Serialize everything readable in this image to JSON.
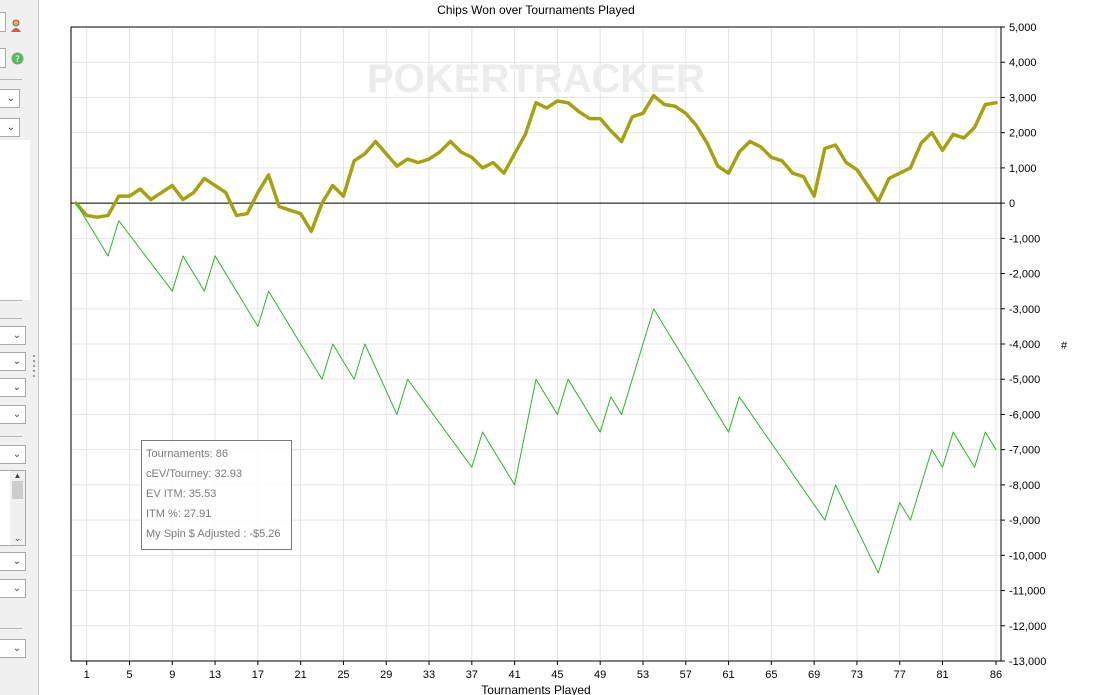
{
  "chart_data": {
    "type": "line",
    "title": "Chips Won over Tournaments Played",
    "xlabel": "Tournaments Played",
    "ylabel": "#",
    "xlim": [
      0,
      86
    ],
    "ylim": [
      -13000,
      5000
    ],
    "x_ticks": [
      "1",
      "5",
      "9",
      "13",
      "17",
      "21",
      "25",
      "29",
      "33",
      "37",
      "41",
      "45",
      "49",
      "53",
      "57",
      "61",
      "65",
      "69",
      "73",
      "77",
      "81",
      "86"
    ],
    "y_ticks": [
      "5,000",
      "4,000",
      "3,000",
      "2,000",
      "1,000",
      "0",
      "-1,000",
      "-2,000",
      "-3,000",
      "-4,000",
      "-5,000",
      "-6,000",
      "-7,000",
      "-8,000",
      "-9,000",
      "-10,000",
      "-11,000",
      "-12,000",
      "-13,000"
    ],
    "grid": true,
    "watermark": "POKERTRACKER",
    "series": [
      {
        "color": "#a3a311",
        "x": [
          0,
          1,
          2,
          3,
          4,
          5,
          6,
          7,
          8,
          9,
          10,
          11,
          12,
          13,
          14,
          15,
          16,
          17,
          18,
          19,
          20,
          21,
          22,
          23,
          24,
          25,
          26,
          27,
          28,
          29,
          30,
          31,
          32,
          33,
          34,
          35,
          36,
          37,
          38,
          39,
          40,
          41,
          42,
          43,
          44,
          45,
          46,
          47,
          48,
          49,
          50,
          51,
          52,
          53,
          54,
          55,
          56,
          57,
          58,
          59,
          60,
          61,
          62,
          63,
          64,
          65,
          66,
          67,
          68,
          69,
          70,
          71,
          72,
          73,
          74,
          75,
          76,
          77,
          78,
          79,
          80,
          81,
          82,
          83,
          84,
          85,
          86
        ],
        "values": [
          0,
          -350,
          -400,
          -350,
          200,
          200,
          400,
          100,
          300,
          500,
          100,
          300,
          700,
          500,
          300,
          -350,
          -300,
          300,
          800,
          -100,
          -200,
          -300,
          -800,
          0,
          500,
          200,
          1200,
          1400,
          1750,
          1400,
          1050,
          1250,
          1150,
          1250,
          1450,
          1750,
          1450,
          1300,
          1000,
          1150,
          850,
          1400,
          1950,
          2850,
          2700,
          2900,
          2850,
          2600,
          2400,
          2400,
          2050,
          1750,
          2450,
          2550,
          3050,
          2800,
          2750,
          2550,
          2200,
          1700,
          1050,
          850,
          1450,
          1750,
          1600,
          1300,
          1200,
          850,
          750,
          200,
          1550,
          1650,
          1150,
          950,
          500,
          50,
          700,
          850,
          1000,
          1700,
          2000,
          1500,
          1950,
          1850,
          2150,
          2800,
          2850
        ]
      },
      {
        "color": "#2db52d",
        "x": [
          0,
          3,
          4,
          9,
          10,
          12,
          13,
          17,
          18,
          23,
          24,
          26,
          27,
          30,
          31,
          37,
          38,
          41,
          43,
          45,
          46,
          49,
          50,
          51,
          52,
          54,
          61,
          62,
          70,
          71,
          75,
          77,
          78,
          80,
          81,
          82,
          84,
          85,
          86
        ],
        "values": [
          0,
          -1500,
          -500,
          -2500,
          -1500,
          -2500,
          -1500,
          -3500,
          -2500,
          -5000,
          -4000,
          -5000,
          -4000,
          -6000,
          -5000,
          -7500,
          -6500,
          -8000,
          -5000,
          -6000,
          -5000,
          -6500,
          -5500,
          -6000,
          -5000,
          -3000,
          -6500,
          -5500,
          -9000,
          -8000,
          -10500,
          -8500,
          -9000,
          -7000,
          -7500,
          -6500,
          -7500,
          -6500,
          -7000
        ]
      }
    ]
  },
  "stats_box": {
    "tournaments": "Tournaments: 86",
    "cev": "cEV/Tourney: 32.93",
    "ev_itm": "EV ITM: 35.53",
    "itm": "ITM %: 27.91",
    "spin_adj": "My Spin $ Adjusted : -$5.26"
  }
}
